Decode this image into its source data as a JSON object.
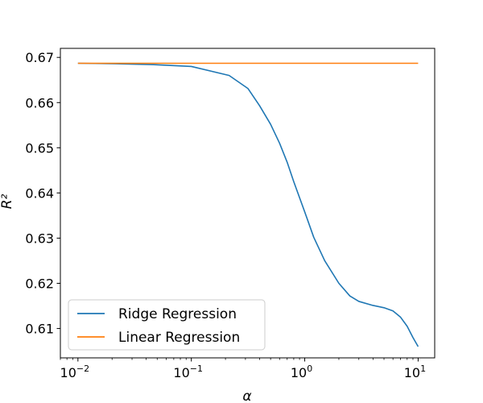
{
  "chart_data": {
    "type": "line",
    "title": "",
    "xlabel": "α",
    "ylabel": "R²",
    "xscale": "log",
    "xlim": [
      0.007,
      14
    ],
    "ylim": [
      0.6035,
      0.672
    ],
    "x_ticks": [
      {
        "value": 0.01,
        "base": "10",
        "exp": "−2"
      },
      {
        "value": 0.1,
        "base": "10",
        "exp": "−1"
      },
      {
        "value": 1,
        "base": "10",
        "exp": "0"
      },
      {
        "value": 10,
        "base": "10",
        "exp": "1"
      }
    ],
    "y_ticks": [
      {
        "value": 0.61,
        "label": "0.61"
      },
      {
        "value": 0.62,
        "label": "0.62"
      },
      {
        "value": 0.63,
        "label": "0.63"
      },
      {
        "value": 0.64,
        "label": "0.64"
      },
      {
        "value": 0.65,
        "label": "0.65"
      },
      {
        "value": 0.66,
        "label": "0.66"
      },
      {
        "value": 0.67,
        "label": "0.67"
      }
    ],
    "grid": false,
    "legend_position": "lower-left",
    "series": [
      {
        "name": "Ridge Regression",
        "color": "#1f77b4",
        "x": [
          0.01,
          0.0215,
          0.0464,
          0.1,
          0.2154,
          0.3162,
          0.4,
          0.5,
          0.6,
          0.7,
          0.8,
          1.0,
          1.2,
          1.5,
          2.0,
          2.5,
          3.0,
          4.0,
          5.0,
          6.0,
          7.0,
          8.0,
          9.0,
          10.0
        ],
        "y": [
          0.6687,
          0.6686,
          0.6684,
          0.668,
          0.666,
          0.6631,
          0.6593,
          0.6552,
          0.651,
          0.6468,
          0.6425,
          0.6358,
          0.6302,
          0.625,
          0.62,
          0.6172,
          0.616,
          0.6151,
          0.6146,
          0.6139,
          0.6125,
          0.6105,
          0.608,
          0.606
        ]
      },
      {
        "name": "Linear Regression",
        "color": "#ff7f0e",
        "x": [
          0.01,
          10.0
        ],
        "y": [
          0.6687,
          0.6687
        ]
      }
    ]
  }
}
